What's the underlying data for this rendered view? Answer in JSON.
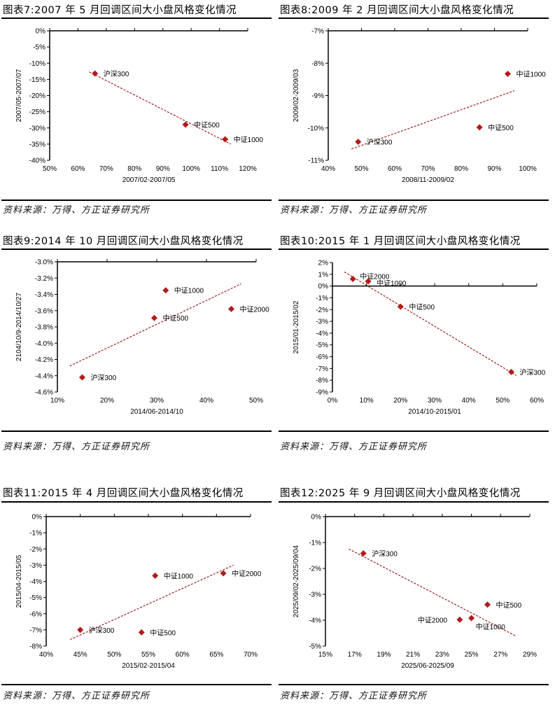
{
  "source_label": "资料来源：万得、方正证券研究所",
  "colors": {
    "marker": "#b01c1c",
    "trendline": "#9b1b1b",
    "axis": "#000000"
  },
  "chart_data": [
    {
      "type": "scatter",
      "title": "图表7:2007 年 5 月回调区间大小盘风格变化情况",
      "xlabel": "2007/02-2007/05",
      "ylabel": "2007/05-2007/07",
      "xlim": [
        50,
        120
      ],
      "ylim": [
        -40,
        0
      ],
      "unit": "%",
      "xticks": [
        50,
        60,
        70,
        80,
        90,
        100,
        110,
        120
      ],
      "xtick_labels": [
        "50%",
        "60%",
        "70%",
        "80%",
        "90%",
        "100%",
        "110%",
        "120%"
      ],
      "yticks": [
        0,
        -5,
        -10,
        -15,
        -20,
        -25,
        -30,
        -35,
        -40
      ],
      "ytick_labels": [
        "0%",
        "-5%",
        "-10%",
        "-15%",
        "-20%",
        "-25%",
        "-30%",
        "-35%",
        "-40%"
      ],
      "points": [
        {
          "label": "沪深300",
          "x": 66,
          "y": -13.2
        },
        {
          "label": "中证500",
          "x": 98,
          "y": -29.0
        },
        {
          "label": "中证1000",
          "x": 112,
          "y": -33.5
        }
      ],
      "trendline": {
        "x": [
          64,
          114
        ],
        "y": [
          -12.7,
          -35.0
        ]
      },
      "grid": false
    },
    {
      "type": "scatter",
      "title": "图表8:2009 年 2 月回调区间大小盘风格变化情况",
      "xlabel": "2008/11-2009/02",
      "ylabel": "2009/02-2009/03",
      "xlim": [
        40,
        100
      ],
      "ylim": [
        -11,
        -7
      ],
      "unit": "%",
      "xticks": [
        40,
        50,
        60,
        70,
        80,
        90,
        100
      ],
      "xtick_labels": [
        "40%",
        "50%",
        "60%",
        "70%",
        "80%",
        "90%",
        "100%"
      ],
      "yticks": [
        -7,
        -8,
        -9,
        -10,
        -11
      ],
      "ytick_labels": [
        "-7%",
        "-8%",
        "-9%",
        "-10%",
        "-11%"
      ],
      "points": [
        {
          "label": "沪深300",
          "x": 49,
          "y": -10.43
        },
        {
          "label": "中证500",
          "x": 85.5,
          "y": -9.98
        },
        {
          "label": "中证1000",
          "x": 94,
          "y": -8.33
        }
      ],
      "trendline": {
        "x": [
          47,
          96
        ],
        "y": [
          -10.65,
          -8.85
        ]
      },
      "grid": false
    },
    {
      "type": "scatter",
      "title": "图表9:2014 年 10 月回调区间大小盘风格变化情况",
      "xlabel": "2014/06-2014/10",
      "ylabel": "2104/10/9-2014/10/27",
      "xlim": [
        10,
        50
      ],
      "ylim": [
        -4.6,
        -3.0
      ],
      "unit": "%",
      "xticks": [
        10,
        20,
        30,
        40,
        50
      ],
      "xtick_labels": [
        "10%",
        "20%",
        "30%",
        "40%",
        "50%"
      ],
      "yticks": [
        -3.0,
        -3.2,
        -3.4,
        -3.6,
        -3.8,
        -4.0,
        -4.2,
        -4.4,
        -4.6
      ],
      "ytick_labels": [
        "-3.0%",
        "-3.2%",
        "-3.4%",
        "-3.6%",
        "-3.8%",
        "-4.0%",
        "-4.2%",
        "-4.4%",
        "-4.6%"
      ],
      "points": [
        {
          "label": "沪深300",
          "x": 15,
          "y": -4.42
        },
        {
          "label": "中证500",
          "x": 29.5,
          "y": -3.69
        },
        {
          "label": "中证1000",
          "x": 31.8,
          "y": -3.35
        },
        {
          "label": "中证2000",
          "x": 45,
          "y": -3.58
        }
      ],
      "trendline": {
        "x": [
          12.5,
          47
        ],
        "y": [
          -4.28,
          -3.27
        ]
      },
      "grid": false
    },
    {
      "type": "scatter",
      "title": "图表10:2015 年 1 月回调区间大小盘风格变化情况",
      "xlabel": "2014/10-2015/01",
      "ylabel": "2015/01-2015/02",
      "xlim": [
        0,
        60
      ],
      "ylim": [
        -9,
        2
      ],
      "unit": "%",
      "xticks": [
        0,
        10,
        20,
        30,
        40,
        50,
        60
      ],
      "xtick_labels": [
        "0%",
        "10%",
        "20%",
        "30%",
        "40%",
        "50%",
        "60%"
      ],
      "yticks": [
        2,
        1,
        0,
        -1,
        -2,
        -3,
        -4,
        -5,
        -6,
        -7,
        -8,
        -9
      ],
      "ytick_labels": [
        "2%",
        "1%",
        "0%",
        "-1%",
        "-2%",
        "-3%",
        "-4%",
        "-5%",
        "-6%",
        "-7%",
        "-8%",
        "-9%"
      ],
      "points": [
        {
          "label": "中证2000",
          "x": 6,
          "y": 0.6
        },
        {
          "label": "中证1000",
          "x": 10.5,
          "y": 0.4
        },
        {
          "label": "中证500",
          "x": 20,
          "y": -1.75
        },
        {
          "label": "沪深300",
          "x": 52.5,
          "y": -7.3
        }
      ],
      "trendline": {
        "x": [
          3.5,
          54
        ],
        "y": [
          1.2,
          -7.6
        ]
      },
      "grid": false
    },
    {
      "type": "scatter",
      "title": "图表11:2015 年 4 月回调区间大小盘风格变化情况",
      "xlabel": "2015/02-2015/04",
      "ylabel": "2015/04-2015/05",
      "xlim": [
        40,
        70
      ],
      "ylim": [
        -8,
        0
      ],
      "unit": "%",
      "xticks": [
        40,
        45,
        50,
        55,
        60,
        65,
        70
      ],
      "xtick_labels": [
        "40%",
        "45%",
        "50%",
        "55%",
        "60%",
        "65%",
        "70%"
      ],
      "yticks": [
        0,
        -1,
        -2,
        -3,
        -4,
        -5,
        -6,
        -7,
        -8
      ],
      "ytick_labels": [
        "0%",
        "-1%",
        "-2%",
        "-3%",
        "-4%",
        "-5%",
        "-6%",
        "-7%",
        "-8%"
      ],
      "points": [
        {
          "label": "沪深300",
          "x": 45,
          "y": -7.0
        },
        {
          "label": "中证500",
          "x": 54,
          "y": -7.15
        },
        {
          "label": "中证1000",
          "x": 56,
          "y": -3.65
        },
        {
          "label": "中证2000",
          "x": 66,
          "y": -3.5
        }
      ],
      "trendline": {
        "x": [
          43.5,
          67.5
        ],
        "y": [
          -7.6,
          -3.0
        ]
      },
      "grid": false
    },
    {
      "type": "scatter",
      "title": "图表12:2025 年 9 月回调区间大小盘风格变化情况",
      "xlabel": "2025/06-2025/09",
      "ylabel": "2025/09/02-2025/09/04",
      "xlim": [
        15,
        29
      ],
      "ylim": [
        -5,
        0
      ],
      "unit": "%",
      "xticks": [
        15,
        17,
        19,
        21,
        23,
        25,
        27,
        29
      ],
      "xtick_labels": [
        "15%",
        "17%",
        "19%",
        "21%",
        "23%",
        "25%",
        "27%",
        "29%"
      ],
      "yticks": [
        0,
        -1,
        -2,
        -3,
        -4,
        -5
      ],
      "ytick_labels": [
        "0%",
        "-1%",
        "-2%",
        "-3%",
        "-4%",
        "-5%"
      ],
      "points": [
        {
          "label": "沪深300",
          "x": 17.6,
          "y": -1.42
        },
        {
          "label": "中证2000",
          "x": 24.2,
          "y": -3.98
        },
        {
          "label": "中证1000",
          "x": 25.0,
          "y": -3.92
        },
        {
          "label": "中证500",
          "x": 26.1,
          "y": -3.4
        }
      ],
      "trendline": {
        "x": [
          16.6,
          28
        ],
        "y": [
          -1.25,
          -4.6
        ]
      },
      "grid": false
    }
  ]
}
